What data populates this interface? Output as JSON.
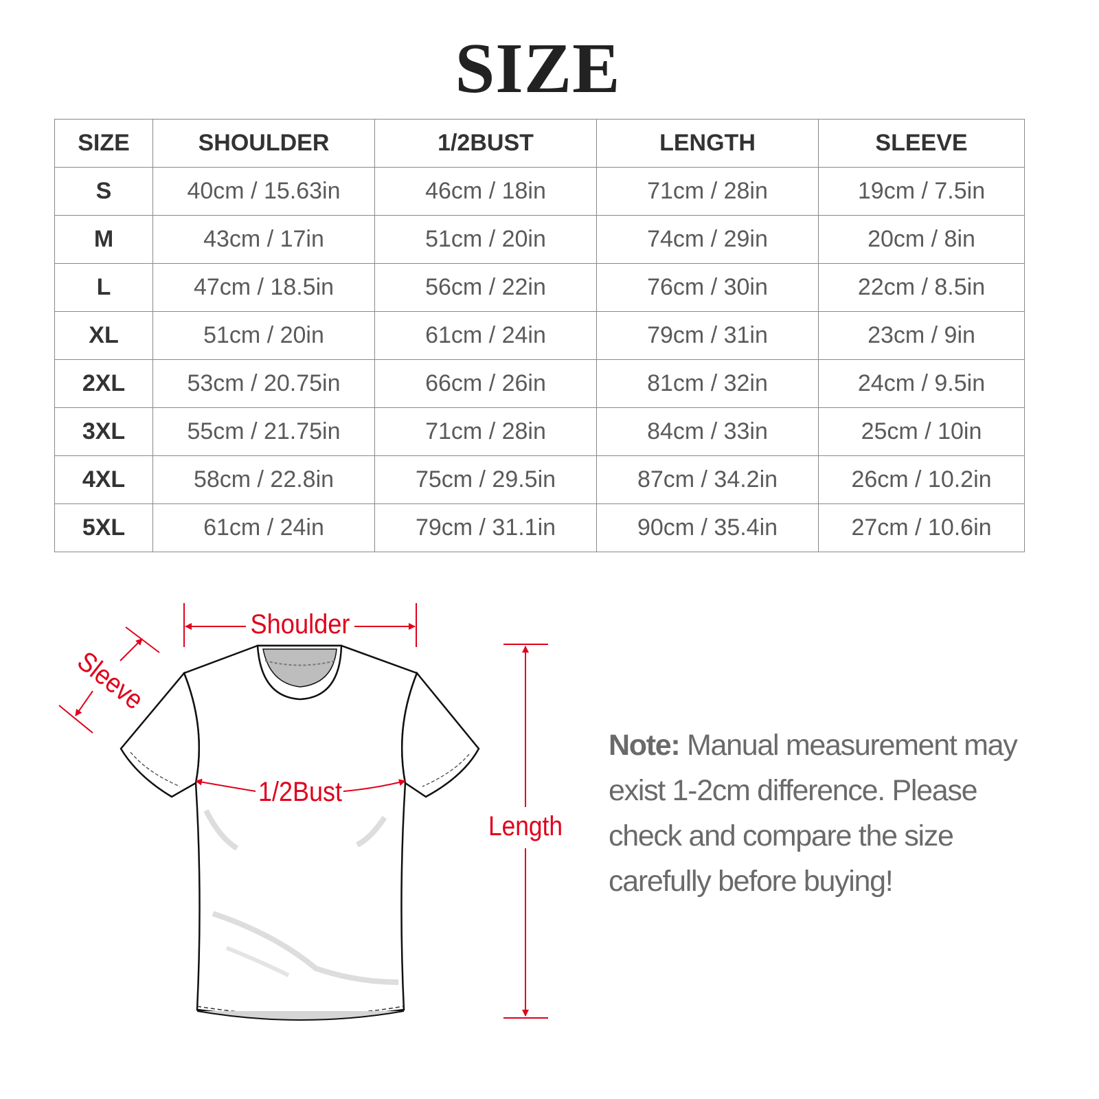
{
  "title": "SIZE",
  "table": {
    "headers": [
      "SIZE",
      "SHOULDER",
      "1/2BUST",
      "LENGTH",
      "SLEEVE"
    ],
    "rows": [
      [
        "S",
        "40cm / 15.63in",
        "46cm / 18in",
        "71cm / 28in",
        "19cm / 7.5in"
      ],
      [
        "M",
        "43cm / 17in",
        "51cm / 20in",
        "74cm / 29in",
        "20cm / 8in"
      ],
      [
        "L",
        "47cm / 18.5in",
        "56cm / 22in",
        "76cm / 30in",
        "22cm / 8.5in"
      ],
      [
        "XL",
        "51cm / 20in",
        "61cm / 24in",
        "79cm / 31in",
        "23cm / 9in"
      ],
      [
        "2XL",
        "53cm / 20.75in",
        "66cm / 26in",
        "81cm / 32in",
        "24cm / 9.5in"
      ],
      [
        "3XL",
        "55cm / 21.75in",
        "71cm / 28in",
        "84cm / 33in",
        "25cm / 10in"
      ],
      [
        "4XL",
        "58cm / 22.8in",
        "75cm / 29.5in",
        "87cm / 34.2in",
        "26cm / 10.2in"
      ],
      [
        "5XL",
        "61cm / 24in",
        "79cm / 31.1in",
        "90cm / 35.4in",
        "27cm / 10.6in"
      ]
    ]
  },
  "diagram": {
    "shoulder": "Shoulder",
    "sleeve": "Sleeve",
    "bust": "1/2Bust",
    "length": "Length",
    "accent_color": "#e0001b"
  },
  "note": {
    "label": "Note:",
    "text": "Manual measurement may exist 1-2cm difference. Please check and compare the size carefully before buying!"
  }
}
